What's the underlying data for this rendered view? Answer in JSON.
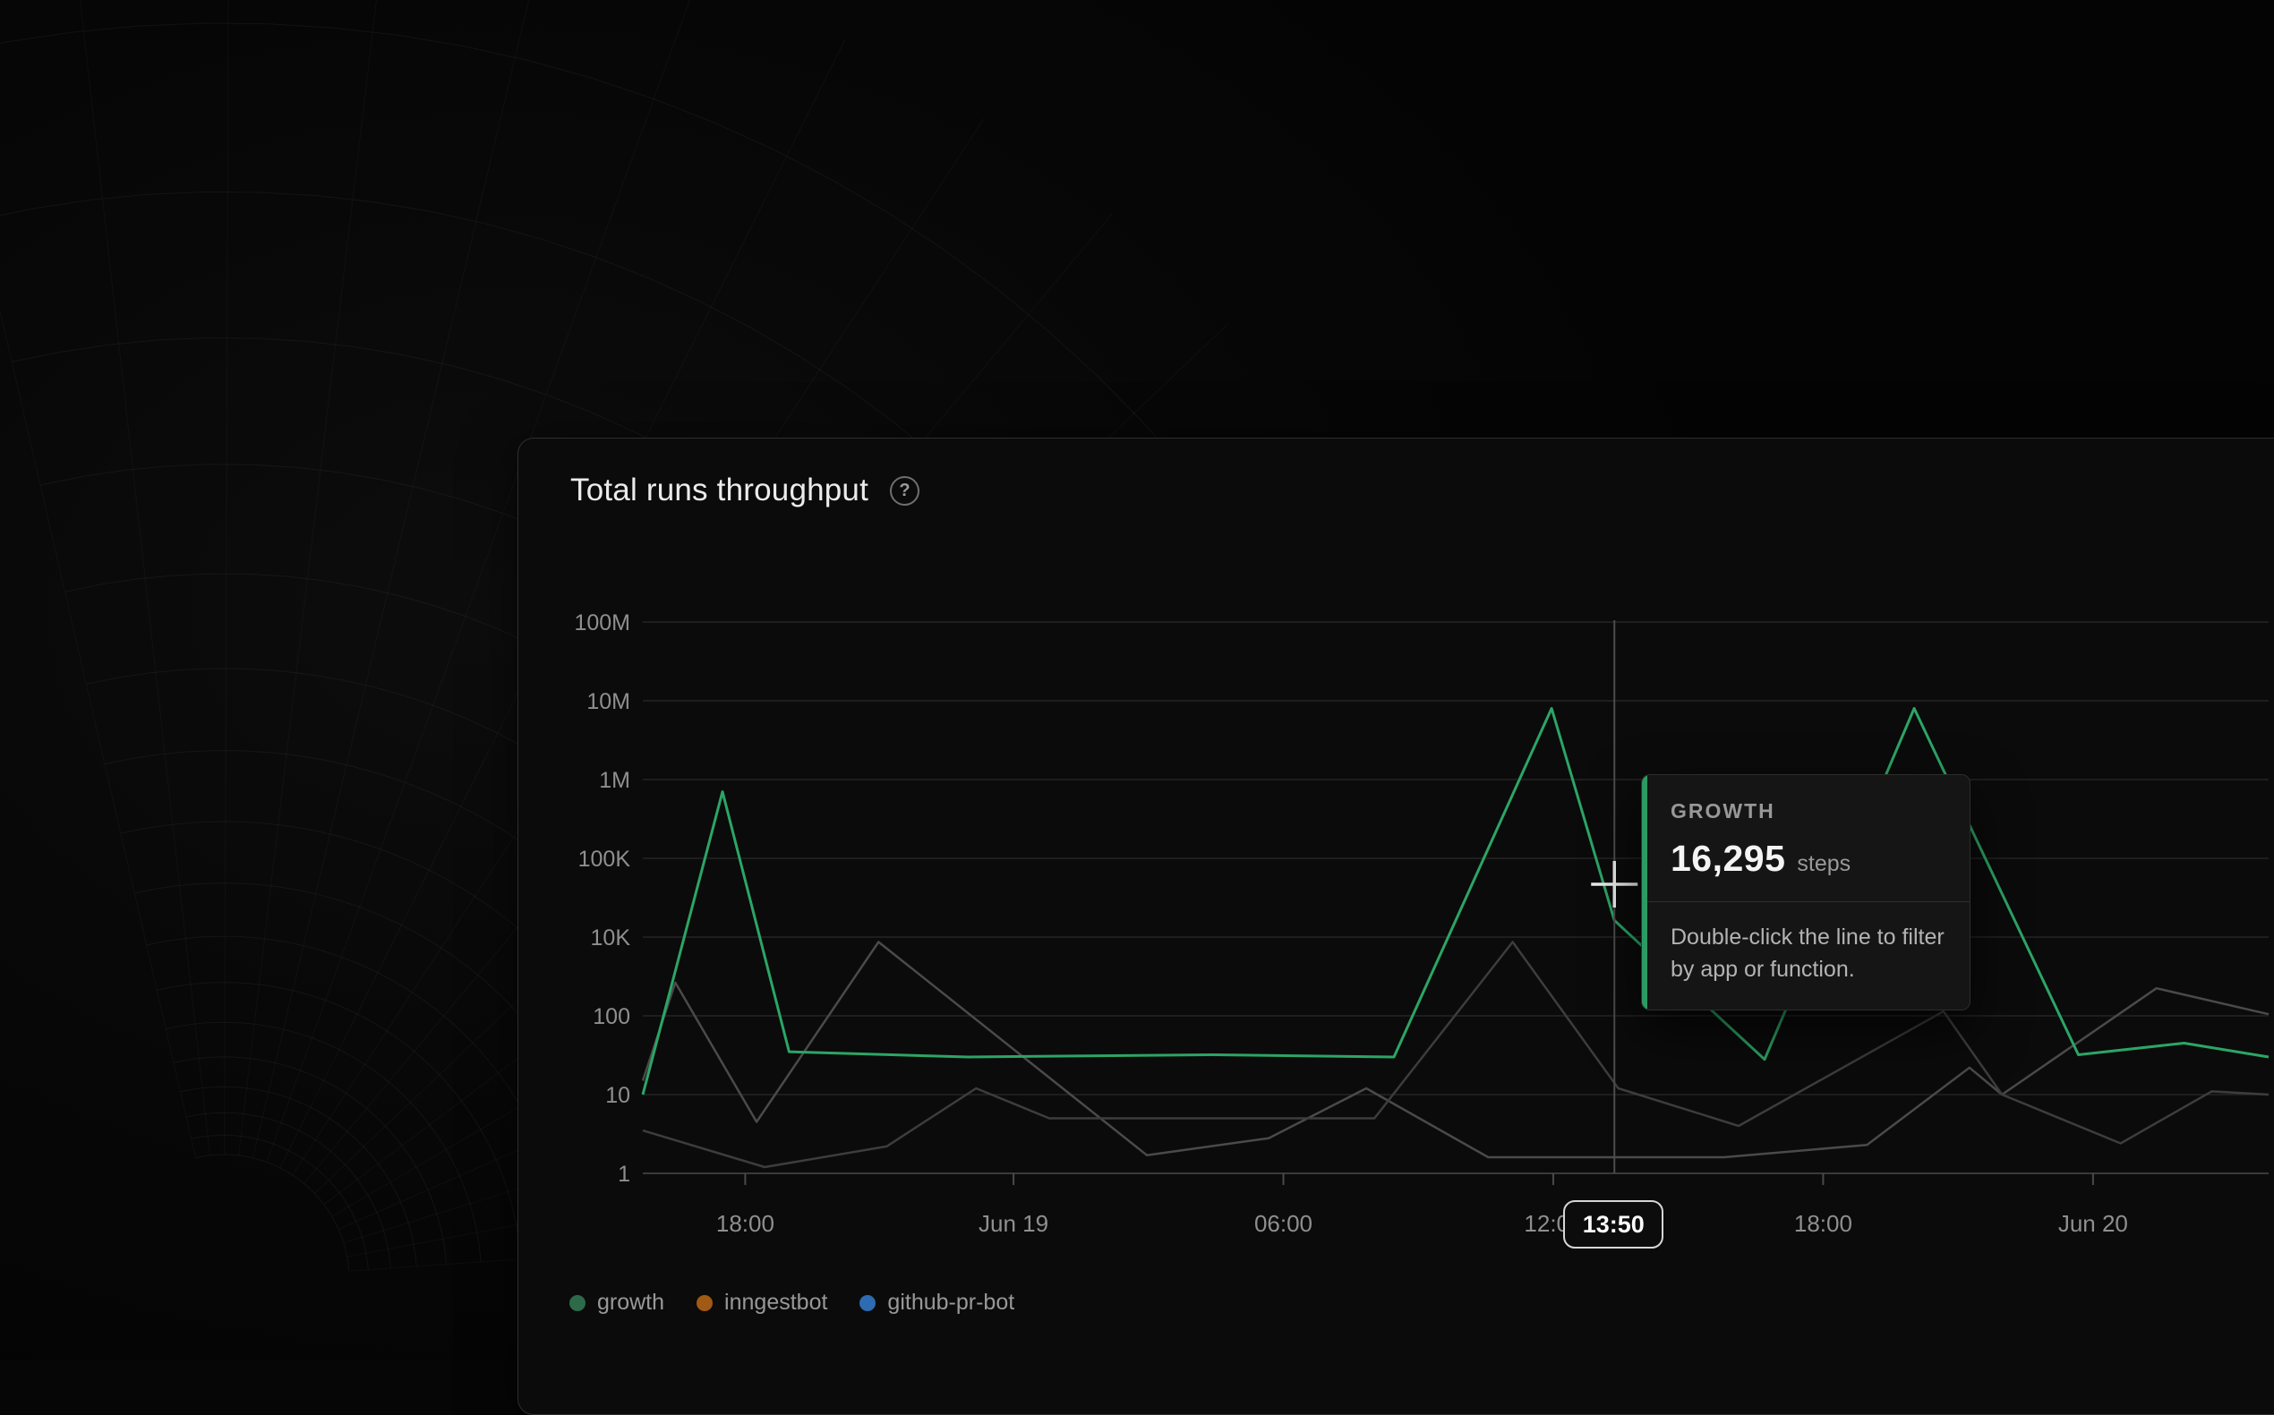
{
  "card": {
    "title": "Total runs throughput",
    "help_icon_glyph": "?"
  },
  "chart_data": {
    "type": "line",
    "title": "Total runs throughput",
    "y_scale": "log",
    "y_labels": [
      "100M",
      "10M",
      "1M",
      "100K",
      "10K",
      "100",
      "10",
      "1"
    ],
    "y_gridline_values": [
      100000000,
      10000000,
      1000000,
      100000,
      10000,
      100,
      10,
      1
    ],
    "x_ticks": [
      {
        "label": "18:00",
        "f": 0.063
      },
      {
        "label": "Jun 19",
        "f": 0.228
      },
      {
        "label": "06:00",
        "f": 0.394
      },
      {
        "label": "12:00",
        "f": 0.56
      },
      {
        "label": "18:00",
        "f": 0.726
      },
      {
        "label": "Jun 20",
        "f": 0.892
      }
    ],
    "series": [
      {
        "name": "inngestbot",
        "line_color": "#4a4a4a",
        "legend_color": "#a05a13",
        "points": [
          [
            0,
            15
          ],
          [
            0.02,
            700
          ],
          [
            0.07,
            4.5
          ],
          [
            0.145,
            7500
          ],
          [
            0.31,
            1.7
          ],
          [
            0.385,
            2.8
          ],
          [
            0.445,
            12
          ],
          [
            0.52,
            1.6
          ],
          [
            0.665,
            1.6
          ],
          [
            0.753,
            2.3
          ],
          [
            0.816,
            22
          ],
          [
            0.836,
            10
          ],
          [
            0.931,
            500
          ],
          [
            1,
            110
          ]
        ]
      },
      {
        "name": "github-pr-bot",
        "line_color": "#3d3d3d",
        "legend_color": "#2d6cb3",
        "points": [
          [
            0,
            3.5
          ],
          [
            0.075,
            1.2
          ],
          [
            0.15,
            2.2
          ],
          [
            0.205,
            12
          ],
          [
            0.25,
            5
          ],
          [
            0.45,
            5
          ],
          [
            0.535,
            7500
          ],
          [
            0.6,
            12
          ],
          [
            0.674,
            4
          ],
          [
            0.8,
            130
          ],
          [
            0.836,
            10
          ],
          [
            0.909,
            2.4
          ],
          [
            0.965,
            11
          ],
          [
            1,
            10
          ]
        ]
      },
      {
        "name": "growth",
        "line_color": "#2ca566",
        "legend_color": "#2d6a4a",
        "points": [
          [
            0,
            10
          ],
          [
            0.049,
            700000
          ],
          [
            0.09,
            35
          ],
          [
            0.2,
            30
          ],
          [
            0.35,
            32
          ],
          [
            0.462,
            30
          ],
          [
            0.559,
            8000000
          ],
          [
            0.5976,
            16295
          ],
          [
            0.69,
            28
          ],
          [
            0.782,
            8000000
          ],
          [
            0.883,
            32
          ],
          [
            0.948,
            45
          ],
          [
            1,
            30
          ]
        ]
      }
    ],
    "crosshair": {
      "f": 0.5976,
      "time_label": "13:50",
      "hovered_series": "growth",
      "hovered_value": 16295
    }
  },
  "tooltip": {
    "series_label": "GROWTH",
    "value": "16,295",
    "unit": "steps",
    "hint": "Double-click the line to filter by app or function.",
    "accent_color": "#2c9b63"
  },
  "legend": [
    {
      "label": "growth",
      "color": "#2d6a4a"
    },
    {
      "label": "inngestbot",
      "color": "#a05a13"
    },
    {
      "label": "github-pr-bot",
      "color": "#2d6cb3"
    }
  ],
  "colors": {
    "grid": "#242424",
    "axis": "#3a3a3a",
    "tick": "#4a4a4a",
    "axis_label": "#8f8f8f",
    "crosshair": "#4d4d4d",
    "cursor": "#ededed"
  }
}
